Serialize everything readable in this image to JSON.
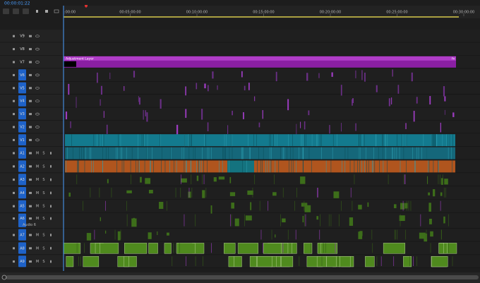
{
  "timecode": "00:00:01:22",
  "ruler": {
    "labels": [
      ":00:00",
      "00:05:00:00",
      "00:10:00:00",
      "00:15:00:00",
      "00:20:00:00",
      "00:25:00:00",
      "00:30:00:00"
    ]
  },
  "tracks": [
    {
      "name": "V9"
    },
    {
      "name": "V8"
    },
    {
      "name": "V7"
    },
    {
      "name": "V6"
    },
    {
      "name": "V5"
    },
    {
      "name": "V4"
    },
    {
      "name": "V3"
    },
    {
      "name": "V2"
    },
    {
      "name": "V1"
    },
    {
      "name": "A1",
      "mute": "M",
      "solo": "S"
    },
    {
      "name": "A2",
      "mute": "M",
      "solo": "S"
    },
    {
      "name": "A3",
      "mute": "M",
      "solo": "S"
    },
    {
      "name": "A4",
      "mute": "M",
      "solo": "S"
    },
    {
      "name": "A5",
      "mute": "M",
      "solo": "S"
    },
    {
      "name": "A6",
      "mute": "M",
      "solo": "S",
      "label": "Audio 6"
    },
    {
      "name": "A7",
      "mute": "M",
      "solo": "S"
    },
    {
      "name": "A8",
      "mute": "M",
      "solo": "S"
    },
    {
      "name": "A9",
      "mute": "M",
      "solo": "S"
    }
  ],
  "adjustment_clip": {
    "label": "Adjustment Layer",
    "fx": "fx"
  }
}
